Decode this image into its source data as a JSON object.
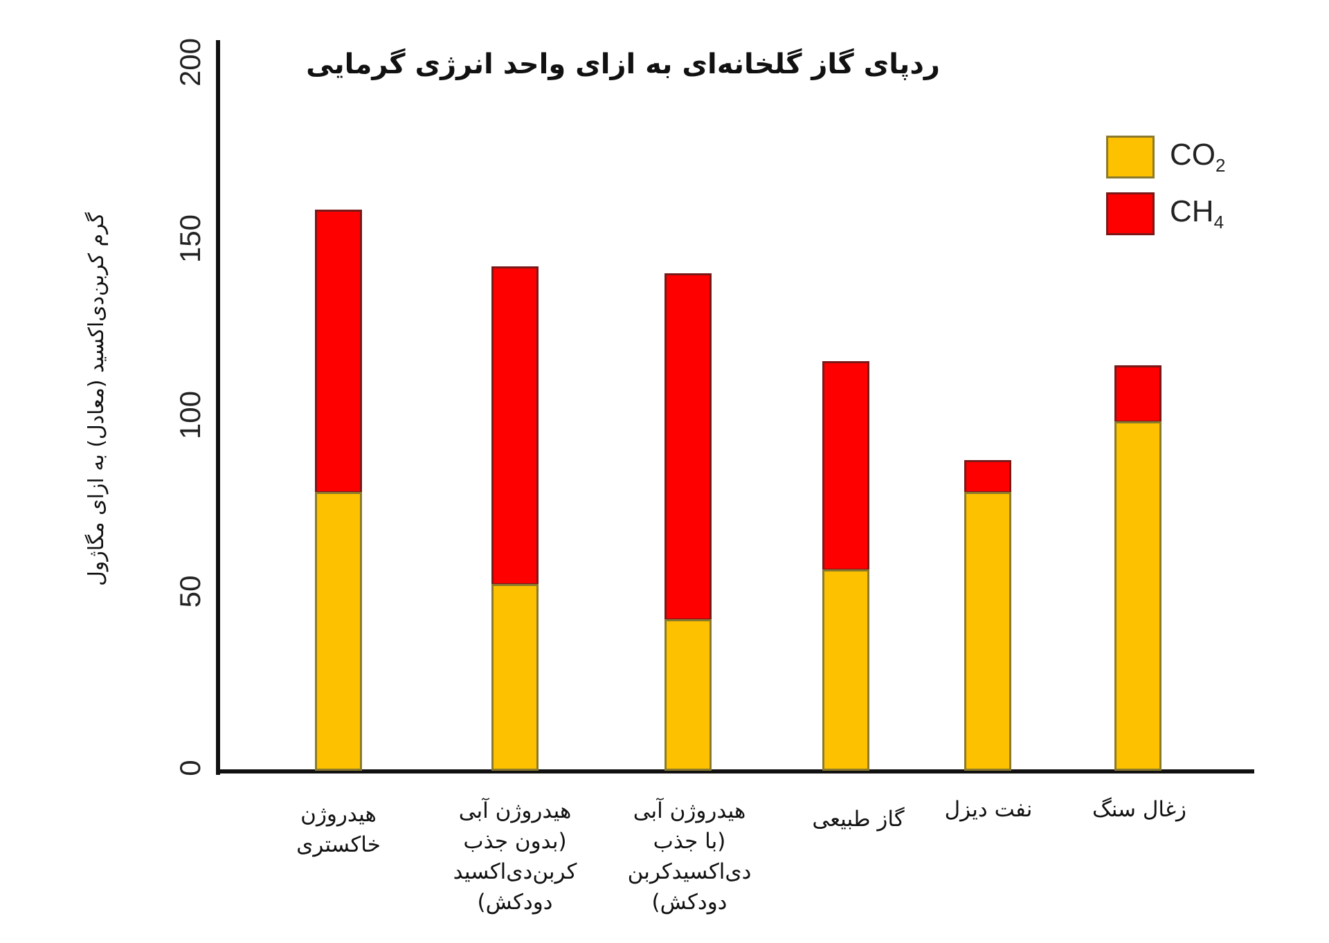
{
  "chart_data": {
    "type": "bar",
    "stacked": true,
    "title": "ردپای گاز گلخانه‌ای به ازای واحد انرژی گرمایی",
    "xlabel": "",
    "ylabel": "گرم کربن‌دی‌اکسید (معادل) به ازای مگاژول",
    "ylim": [
      0,
      200
    ],
    "yticks": [
      0,
      50,
      100,
      150,
      200
    ],
    "grid": false,
    "legend_position": "top-right",
    "categories": [
      "هیدروژن خاکستری",
      "هیدروژن آبی (بدون جذب کربن‌دی‌اکسید دودکش)",
      "هیدروژن آبی (با جذب دی‌اکسیدکربن دودکش)",
      "گاز طبیعی",
      "نفت دیزل",
      "زغال سنگ"
    ],
    "series": [
      {
        "name": "CO2",
        "color": "#FDC100",
        "values": [
          79,
          53,
          43,
          57,
          79,
          99
        ]
      },
      {
        "name": "CH4",
        "color": "#FF0000",
        "values": [
          80,
          90,
          98,
          59,
          9,
          16
        ]
      }
    ],
    "totals": [
      159,
      143,
      141,
      116,
      88,
      115
    ]
  },
  "labels": {
    "title": "ردپای گاز گلخانه‌ای به ازای واحد انرژی گرمایی",
    "ylabel": "گرم کربن‌دی‌اکسید (معادل) به ازای مگاژول",
    "yticks": [
      "0",
      "50",
      "100",
      "150",
      "200"
    ],
    "categories": [
      "هیدروژن\nخاکستری",
      "هیدروژن آبی\n(بدون جذب\nکربن‌دی‌اکسید\nدودکش)",
      "هیدروژن آبی\n(با جذب\nدی‌اکسیدکربن\nدودکش)",
      "گاز طبیعی",
      "نفت دیزل",
      "زغال سنگ"
    ],
    "legend": [
      {
        "base": "CO",
        "sub": "2"
      },
      {
        "base": "CH",
        "sub": "4"
      }
    ]
  }
}
